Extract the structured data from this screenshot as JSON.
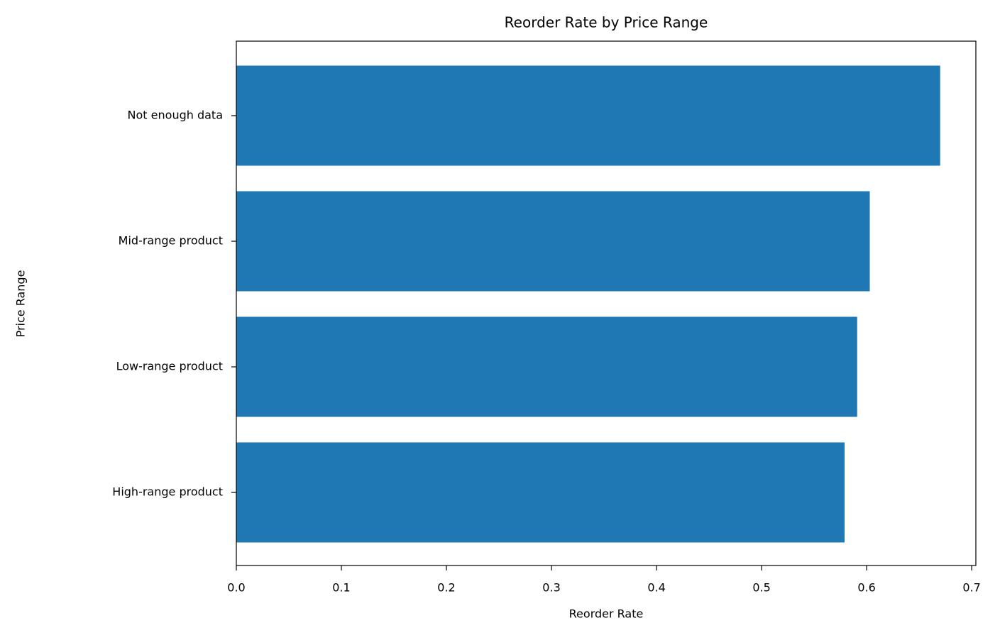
{
  "chart_data": {
    "type": "bar",
    "orientation": "horizontal",
    "title": "Reorder Rate by Price Range",
    "x_label": "Reorder Rate",
    "y_label": "Price Range",
    "categories": [
      "High-range product",
      "Low-range product",
      "Mid-range product",
      "Not enough data"
    ],
    "values": [
      0.579,
      0.591,
      0.603,
      0.67
    ],
    "color": "#1f77b4",
    "xlim": [
      0,
      0.704
    ],
    "xticks": [
      {
        "value": 0,
        "label": "0.0"
      },
      0.1,
      0.2,
      0.3,
      0.4,
      0.5,
      0.6,
      0.7
    ],
    "grid": false
  }
}
